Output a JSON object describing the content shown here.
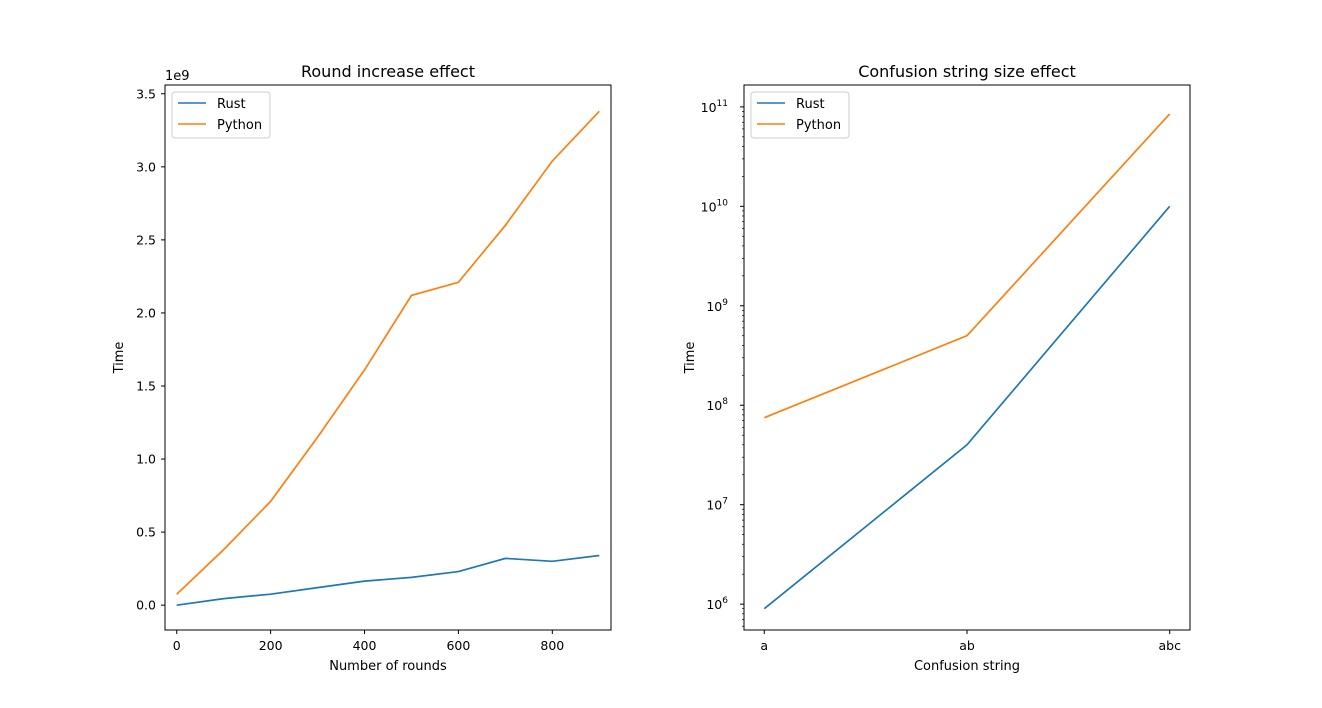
{
  "colors": {
    "rust": "#1f77b4",
    "python": "#ff7f0e",
    "axes": "#000000"
  },
  "chart_data": [
    {
      "type": "line",
      "title": "Round increase effect",
      "xlabel": "Number of rounds",
      "ylabel": "Time",
      "offset_label": "1e9",
      "xlim": [
        -25,
        925
      ],
      "ylim": [
        -170000000.0,
        3560000000.0
      ],
      "xticks": [
        0,
        200,
        400,
        600,
        800
      ],
      "xtick_labels": [
        "0",
        "200",
        "400",
        "600",
        "800"
      ],
      "yticks": [
        0,
        500000000.0,
        1000000000.0,
        1500000000.0,
        2000000000.0,
        2500000000.0,
        3000000000.0,
        3500000000.0
      ],
      "ytick_labels": [
        "0.0",
        "0.5",
        "1.0",
        "1.5",
        "2.0",
        "2.5",
        "3.0",
        "3.5"
      ],
      "y_scale": "linear",
      "legend_position": "upper left",
      "x": [
        0,
        100,
        200,
        300,
        400,
        500,
        600,
        700,
        800,
        900
      ],
      "series": [
        {
          "name": "Rust",
          "color": "#1f77b4",
          "values": [
            0.0,
            45000000.0,
            75000000.0,
            120000000.0,
            165000000.0,
            190000000.0,
            230000000.0,
            320000000.0,
            300000000.0,
            340000000.0
          ]
        },
        {
          "name": "Python",
          "color": "#ff7f0e",
          "values": [
            75000000.0,
            380000000.0,
            710000000.0,
            1150000000.0,
            1610000000.0,
            2120000000.0,
            2210000000.0,
            2600000000.0,
            3040000000.0,
            3380000000.0
          ]
        }
      ]
    },
    {
      "type": "line",
      "title": "Confusion string size effect",
      "xlabel": "Confusion string",
      "ylabel": "Time",
      "categories": [
        "a",
        "ab",
        "abc"
      ],
      "y_scale": "log",
      "ylim_log10": [
        5.74,
        11.22
      ],
      "yticks_log10": [
        6,
        7,
        8,
        9,
        10,
        11
      ],
      "legend_position": "upper left",
      "series": [
        {
          "name": "Rust",
          "color": "#1f77b4",
          "values": [
            900000,
            40000000,
            10000000000
          ]
        },
        {
          "name": "Python",
          "color": "#ff7f0e",
          "values": [
            75000000,
            500000000,
            85000000000
          ]
        }
      ]
    }
  ]
}
